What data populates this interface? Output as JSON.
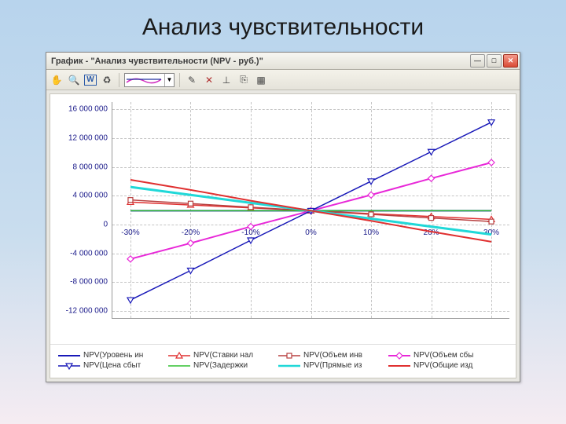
{
  "slide": {
    "title": "Анализ чувствительности"
  },
  "window": {
    "title": "График - \"Анализ чувствительности (NPV - руб.)\"",
    "toolbar_icons": [
      "hand",
      "zoom",
      "word",
      "refresh",
      "edit",
      "axes",
      "ruler",
      "copy",
      "grid"
    ]
  },
  "chart": {
    "type": "line",
    "background_color": "#ffffff",
    "grid_color": "#c4c4c4",
    "axis_color": "#999999",
    "label_color": "#1a1a8a",
    "label_fontsize": 10,
    "x": {
      "values": [
        -30,
        -20,
        -10,
        0,
        10,
        20,
        30
      ],
      "labels": [
        "-30%",
        "-20%",
        "-10%",
        "0%",
        "10%",
        "20%",
        "30%"
      ],
      "min": -33,
      "max": 33
    },
    "y": {
      "ticks": [
        -12000000,
        -8000000,
        -4000000,
        0,
        4000000,
        8000000,
        12000000,
        16000000
      ],
      "labels": [
        "-12 000 000",
        "-8 000 000",
        "-4 000 000",
        "0",
        "4 000 000",
        "8 000 000",
        "12 000 000",
        "16 000 000"
      ],
      "min": -13000000,
      "max": 17000000
    },
    "series": [
      {
        "name": "NPV(Уровень ин",
        "color": "#1818b8",
        "width": 2,
        "marker": "none",
        "values": [
          1900000,
          1900000,
          1900000,
          1900000,
          1900000,
          1900000,
          1900000
        ]
      },
      {
        "name": "NPV(Ставки нал",
        "color": "#e03030",
        "width": 1.5,
        "marker": "triangle",
        "values": [
          3100000,
          2700000,
          2300000,
          1900000,
          1500000,
          1100000,
          700000
        ]
      },
      {
        "name": "NPV(Объем инв",
        "color": "#b84040",
        "width": 1.5,
        "marker": "square",
        "values": [
          3400000,
          2900000,
          2400000,
          1900000,
          1400000,
          900000,
          400000
        ]
      },
      {
        "name": "NPV(Объем сбы",
        "color": "#e828d8",
        "width": 2,
        "marker": "diamond",
        "values": [
          -4800000,
          -2600000,
          -300000,
          1900000,
          4100000,
          6400000,
          8600000
        ]
      },
      {
        "name": "NPV(Цена сбыт",
        "color": "#1818b8",
        "width": 1.5,
        "marker": "triangle-down",
        "values": [
          -10500000,
          -6400000,
          -2200000,
          1900000,
          6000000,
          10100000,
          14200000
        ]
      },
      {
        "name": "NPV(Задержки",
        "color": "#30c030",
        "width": 1.5,
        "marker": "none",
        "values": [
          1900000,
          1900000,
          1900000,
          1900000,
          1900000,
          1900000,
          1900000
        ]
      },
      {
        "name": "NPV(Прямые из",
        "color": "#20d8d8",
        "width": 3,
        "marker": "none",
        "values": [
          5200000,
          4100000,
          3000000,
          1900000,
          800000,
          -300000,
          -1400000
        ]
      },
      {
        "name": "NPV(Общие изд",
        "color": "#e03030",
        "width": 2,
        "marker": "none",
        "values": [
          6200000,
          4800000,
          3300000,
          1900000,
          500000,
          -1000000,
          -2400000
        ]
      }
    ]
  }
}
